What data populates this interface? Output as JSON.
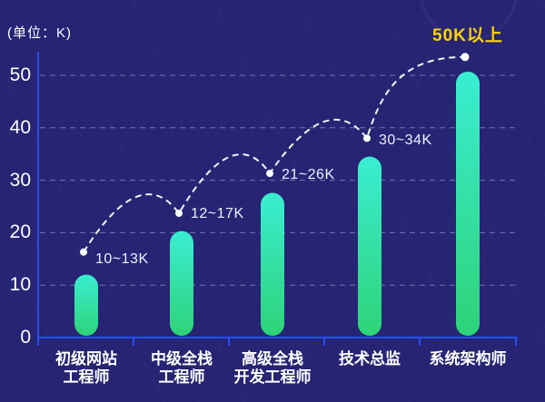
{
  "unit_label": "(单位：K)",
  "colors": {
    "background": "#262473",
    "axis_blue": "#2350eb",
    "gridline": "#b4b9d8",
    "bar_gradient_top": "#3aedd2",
    "bar_gradient_bottom": "#2ed377",
    "curve_white": "#f2f3fa",
    "highlight_yellow": "#ffd400",
    "label_white": "#ffffff"
  },
  "chart_data": {
    "type": "bar",
    "title": "",
    "unit": "K",
    "unit_note": "(单位：K)",
    "categories": [
      "初级网站工程师",
      "中级全栈工程师",
      "高级全栈开发工程师",
      "技术总监",
      "系统架构师"
    ],
    "category_lines": [
      [
        "初级网站",
        "工程师"
      ],
      [
        "中级全栈",
        "工程师"
      ],
      [
        "高级全栈",
        "开发工程师"
      ],
      [
        "技术总监"
      ],
      [
        "系统架构师"
      ]
    ],
    "salary_labels": [
      "10~13K",
      "12~17K",
      "21~26K",
      "30~34K",
      "50K以上"
    ],
    "bar_values_k": [
      12,
      20.3,
      27.6,
      34.5,
      50.7
    ],
    "point_values_k": [
      16.3,
      23.7,
      31.3,
      38,
      53.5
    ],
    "y_ticks": [
      0,
      10,
      20,
      30,
      40,
      50
    ],
    "ylim": [
      0,
      55
    ],
    "grid": "dashed-horizontal",
    "legend": "none",
    "annotation_style": "dashed arc trend curve with white dots linking each salary level"
  }
}
